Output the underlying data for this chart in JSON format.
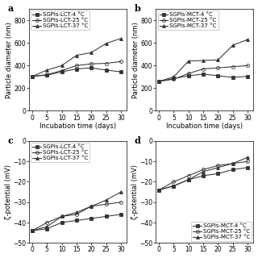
{
  "days": [
    0,
    5,
    10,
    15,
    20,
    25,
    30
  ],
  "panel_a": {
    "label": "a",
    "series": [
      {
        "label": "SGPIs-LCT-4 °C",
        "marker": "s",
        "fillstyle": "full",
        "values": [
          305,
          315,
          345,
          370,
          380,
          360,
          345
        ]
      },
      {
        "label": "SGPIs-LCT-25 °C",
        "marker": "o",
        "fillstyle": "none",
        "values": [
          305,
          320,
          355,
          400,
          415,
          420,
          435
        ]
      },
      {
        "label": "SGPIs-LCT-37 °C",
        "marker": "^",
        "fillstyle": "full",
        "values": [
          305,
          360,
          400,
          490,
          515,
          595,
          640
        ]
      }
    ],
    "ylabel": "Particle diameter (nm)",
    "ylim": [
      0,
      900
    ],
    "yticks": [
      0,
      200,
      400,
      600,
      800
    ],
    "has_xlabel": true
  },
  "panel_b": {
    "label": "b",
    "series": [
      {
        "label": "SGPIs-MCT-4 °C",
        "marker": "s",
        "fillstyle": "full",
        "values": [
          260,
          285,
          310,
          325,
          310,
          295,
          305
        ]
      },
      {
        "label": "SGPIs-MCT-25 °C",
        "marker": "o",
        "fillstyle": "none",
        "values": [
          260,
          280,
          330,
          370,
          380,
          390,
          400
        ]
      },
      {
        "label": "SGPIs-MCT-37 °C",
        "marker": "^",
        "fillstyle": "full",
        "values": [
          260,
          300,
          440,
          445,
          450,
          580,
          630
        ]
      }
    ],
    "ylabel": "Particle diameter (nm)",
    "ylim": [
      0,
      900
    ],
    "yticks": [
      0,
      200,
      400,
      600,
      800
    ],
    "has_xlabel": true
  },
  "panel_c": {
    "label": "c",
    "series": [
      {
        "label": "SGPIs-LCT-4 °C",
        "marker": "s",
        "fillstyle": "full",
        "values": [
          -44,
          -43,
          -40,
          -39,
          -38,
          -37,
          -36
        ]
      },
      {
        "label": "SGPIs-LCT-25 °C",
        "marker": "o",
        "fillstyle": "none",
        "values": [
          -44,
          -40,
          -37,
          -36,
          -32,
          -31,
          -30
        ]
      },
      {
        "label": "SGPIs-LCT-37 °C",
        "marker": "^",
        "fillstyle": "full",
        "values": [
          -44,
          -42,
          -37,
          -35,
          -32,
          -29,
          -25
        ]
      }
    ],
    "ylabel": "ζ-potential (mV)",
    "ylim": [
      -50,
      0
    ],
    "yticks": [
      -50,
      -40,
      -30,
      -20,
      -10,
      0
    ],
    "has_xlabel": false
  },
  "panel_d": {
    "label": "d",
    "series": [
      {
        "label": "SGPIs-MCT-4 °C",
        "marker": "s",
        "fillstyle": "full",
        "values": [
          -24,
          -22,
          -19,
          -17,
          -16,
          -14,
          -13
        ]
      },
      {
        "label": "SGPIs-MCT-25 °C",
        "marker": "o",
        "fillstyle": "none",
        "values": [
          -24,
          -20,
          -17,
          -14,
          -12,
          -11,
          -10
        ]
      },
      {
        "label": "SGPIs-MCT-37 °C",
        "marker": "^",
        "fillstyle": "full",
        "values": [
          -24,
          -22,
          -19,
          -15,
          -13,
          -11,
          -8
        ]
      }
    ],
    "ylabel": "ζ-potential (mV)",
    "ylim": [
      -50,
      0
    ],
    "yticks": [
      -50,
      -40,
      -30,
      -20,
      -10,
      0
    ],
    "has_xlabel": false
  },
  "line_color": "#333333",
  "xticks": [
    0,
    5,
    10,
    15,
    20,
    25,
    30
  ],
  "xlabel_text": "Incubation time (days)",
  "fontsize_label": 6,
  "fontsize_tick": 5.5,
  "fontsize_legend": 5.0,
  "fontsize_panel": 8
}
